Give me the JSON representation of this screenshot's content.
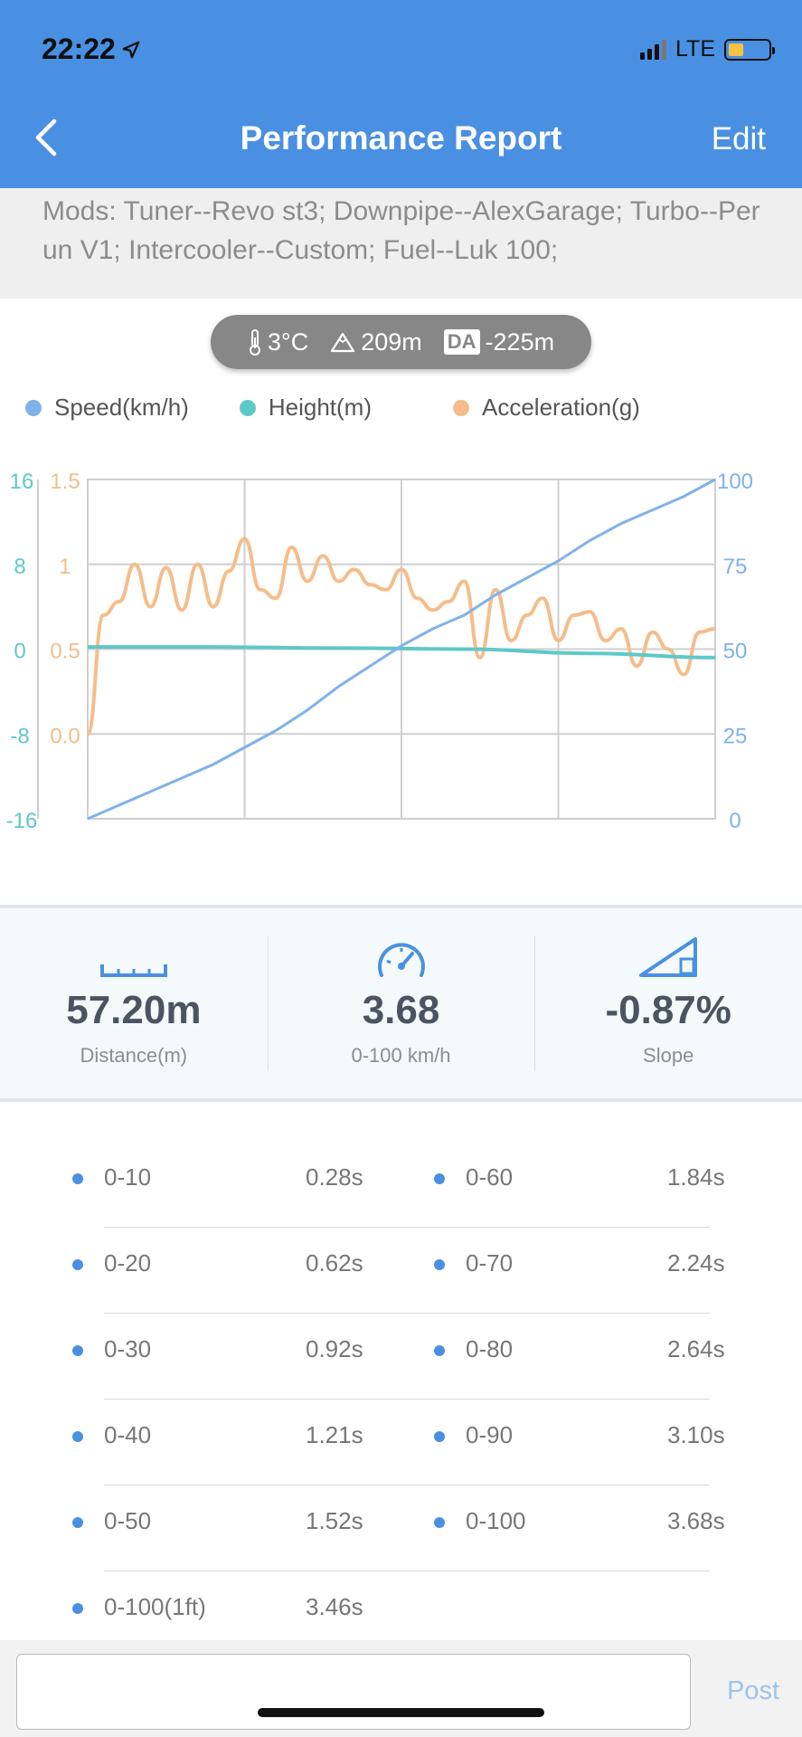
{
  "status": {
    "time": "22:22",
    "carrier": "LTE"
  },
  "header": {
    "title": "Performance Report",
    "edit": "Edit"
  },
  "mods": "Mods: Tuner--Revo st3; Downpipe--AlexGarage; Turbo--Perun V1; Intercooler--Custom; Fuel--Luk 100;",
  "conditions": {
    "temperature": "3°C",
    "altitude": "209m",
    "da_label": "DA",
    "density_altitude": "-225m"
  },
  "legend": [
    {
      "label": "Speed(km/h)",
      "color": "#7fb2ea"
    },
    {
      "label": "Height(m)",
      "color": "#5ec8c8"
    },
    {
      "label": "Acceleration(g)",
      "color": "#f5bd8a"
    }
  ],
  "chart_data": {
    "type": "line",
    "height_axis_ticks": [
      "16",
      "8",
      "0",
      "-8",
      "-16"
    ],
    "accel_axis_ticks": [
      "1.5",
      "1",
      "0.5",
      "0.0"
    ],
    "speed_axis_ticks": [
      "100",
      "75",
      "50",
      "25",
      "0"
    ],
    "series": [
      {
        "name": "Speed(km/h)",
        "axis": "right",
        "color": "#7fb2ea",
        "x": [
          0,
          1,
          2,
          3,
          4,
          5,
          6,
          7,
          8,
          9,
          10,
          11,
          12,
          13,
          14,
          15,
          16,
          17,
          18,
          19,
          20
        ],
        "y": [
          0,
          4,
          8,
          12,
          16,
          21,
          26,
          32,
          39,
          45,
          51,
          56,
          60,
          66,
          71,
          76,
          82,
          87,
          91,
          95,
          100
        ]
      },
      {
        "name": "Height(m)",
        "axis": "left",
        "color": "#5ec8c8",
        "x": [
          0,
          4,
          8,
          12,
          16,
          20
        ],
        "y": [
          0.2,
          0.2,
          0.1,
          0.0,
          -0.4,
          -0.8
        ]
      },
      {
        "name": "Acceleration(g)",
        "axis": "middle",
        "color": "#f5bd8a",
        "x": [
          0,
          0.5,
          1,
          1.5,
          2,
          2.5,
          3,
          3.5,
          4,
          4.5,
          5,
          5.5,
          6,
          6.5,
          7,
          7.5,
          8,
          8.5,
          9,
          9.5,
          10,
          10.5,
          11,
          11.5,
          12,
          12.5,
          13,
          13.5,
          14,
          14.5,
          15,
          15.5,
          16,
          16.5,
          17,
          17.5,
          18,
          18.5,
          19,
          19.5,
          20
        ],
        "y": [
          0.0,
          0.7,
          0.78,
          1.0,
          0.75,
          0.98,
          0.73,
          1.0,
          0.75,
          0.96,
          1.15,
          0.85,
          0.8,
          1.1,
          0.9,
          1.05,
          0.9,
          0.97,
          0.88,
          0.85,
          0.97,
          0.8,
          0.73,
          0.78,
          0.9,
          0.45,
          0.85,
          0.55,
          0.7,
          0.8,
          0.55,
          0.7,
          0.72,
          0.55,
          0.62,
          0.4,
          0.6,
          0.5,
          0.35,
          0.6,
          0.62
        ]
      }
    ]
  },
  "stats": [
    {
      "value": "57.20m",
      "label": "Distance(m)",
      "icon": "ruler-icon"
    },
    {
      "value": "3.68",
      "label": "0-100 km/h",
      "icon": "speedometer-icon"
    },
    {
      "value": "-0.87%",
      "label": "Slope",
      "icon": "slope-icon"
    }
  ],
  "splits": [
    {
      "left_label": "0-10",
      "left_value": "0.28s",
      "right_label": "0-60",
      "right_value": "1.84s"
    },
    {
      "left_label": "0-20",
      "left_value": "0.62s",
      "right_label": "0-70",
      "right_value": "2.24s"
    },
    {
      "left_label": "0-30",
      "left_value": "0.92s",
      "right_label": "0-80",
      "right_value": "2.64s"
    },
    {
      "left_label": "0-40",
      "left_value": "1.21s",
      "right_label": "0-90",
      "right_value": "3.10s"
    },
    {
      "left_label": "0-50",
      "left_value": "1.52s",
      "right_label": "0-100",
      "right_value": "3.68s"
    },
    {
      "left_label": "0-100(1ft)",
      "left_value": "3.46s"
    }
  ],
  "comment": {
    "placeholder": "",
    "post": "Post"
  }
}
